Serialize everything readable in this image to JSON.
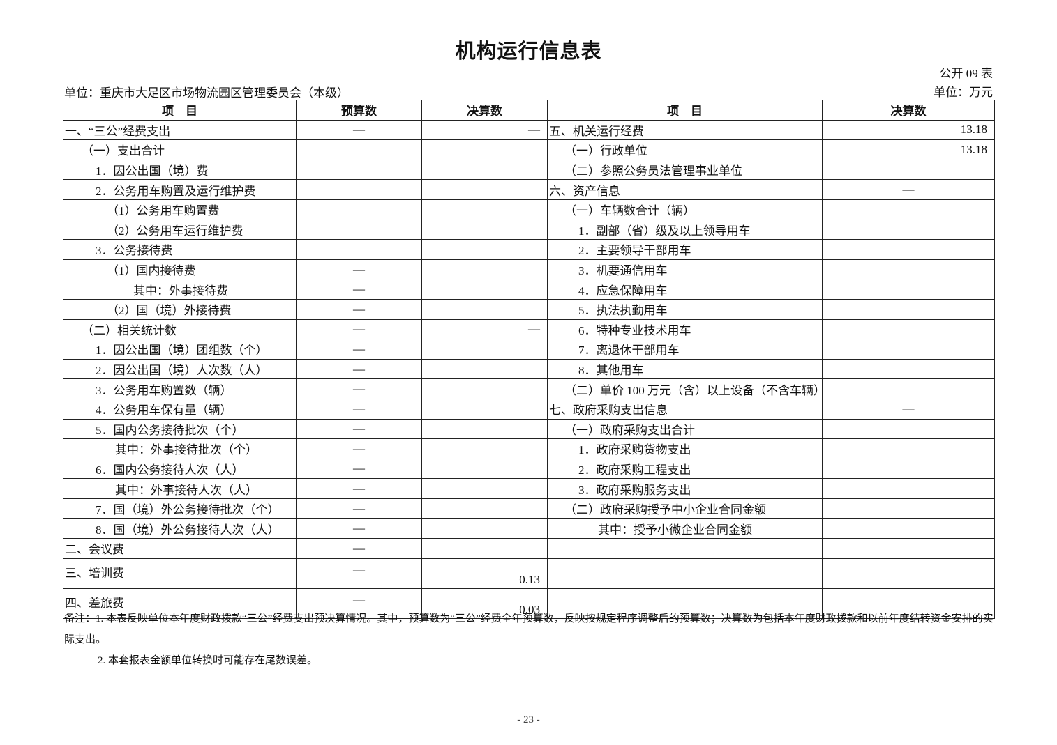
{
  "title": "机构运行信息表",
  "table_no": "公开 09 表",
  "unit_org": "单位：重庆市大足区市场物流园区管理委员会（本级）",
  "unit_money": "单位：万元",
  "headers": {
    "left_item": "项　目",
    "left_budget": "预算数",
    "left_final": "决算数",
    "right_item": "项　目",
    "right_final": "决算数"
  },
  "rows": [
    {
      "l": "一、“三公”经费支出",
      "ll": 0,
      "b": "—",
      "f": "—",
      "r": "五、机关运行经费",
      "rl": 0,
      "rf": "13.18"
    },
    {
      "l": "（一）支出合计",
      "ll": 1,
      "b": "",
      "f": "",
      "r": "（一）行政单位",
      "rl": 1,
      "rf": "13.18"
    },
    {
      "l": "1．因公出国（境）费",
      "ll": 2,
      "b": "",
      "f": "",
      "r": "（二）参照公务员法管理事业单位",
      "rl": 1,
      "rf": ""
    },
    {
      "l": "2．公务用车购置及运行维护费",
      "ll": 2,
      "b": "",
      "f": "",
      "r": "六、资产信息",
      "rl": 0,
      "rf": "—"
    },
    {
      "l": "（1）公务用车购置费",
      "ll": 3,
      "b": "",
      "f": "",
      "r": "（一）车辆数合计（辆）",
      "rl": 1,
      "rf": ""
    },
    {
      "l": "（2）公务用车运行维护费",
      "ll": 3,
      "b": "",
      "f": "",
      "r": "1．副部（省）级及以上领导用车",
      "rl": 2,
      "rf": ""
    },
    {
      "l": "3．公务接待费",
      "ll": 2,
      "b": "",
      "f": "",
      "r": "2．主要领导干部用车",
      "rl": 2,
      "rf": ""
    },
    {
      "l": "（1）国内接待费",
      "ll": 3,
      "b": "—",
      "f": "",
      "r": "3．机要通信用车",
      "rl": 2,
      "rf": ""
    },
    {
      "l": "其中：外事接待费",
      "ll": 5,
      "b": "—",
      "f": "",
      "r": "4．应急保障用车",
      "rl": 2,
      "rf": ""
    },
    {
      "l": "（2）国（境）外接待费",
      "ll": 3,
      "b": "—",
      "f": "",
      "r": "5．执法执勤用车",
      "rl": 2,
      "rf": ""
    },
    {
      "l": "（二）相关统计数",
      "ll": 1,
      "b": "—",
      "f": "—",
      "r": "6．特种专业技术用车",
      "rl": 2,
      "rf": ""
    },
    {
      "l": "1．因公出国（境）团组数（个）",
      "ll": 2,
      "b": "—",
      "f": "",
      "r": "7．离退休干部用车",
      "rl": 2,
      "rf": ""
    },
    {
      "l": "2．因公出国（境）人次数（人）",
      "ll": 2,
      "b": "—",
      "f": "",
      "r": "8．其他用车",
      "rl": 2,
      "rf": ""
    },
    {
      "l": "3．公务用车购置数（辆）",
      "ll": 2,
      "b": "—",
      "f": "",
      "r": "（二）单价 100 万元（含）以上设备（不含车辆）",
      "rl": 1,
      "rf": ""
    },
    {
      "l": "4．公务用车保有量（辆）",
      "ll": 2,
      "b": "—",
      "f": "",
      "r": "七、政府采购支出信息",
      "rl": 0,
      "rf": "—"
    },
    {
      "l": "5．国内公务接待批次（个）",
      "ll": 2,
      "b": "—",
      "f": "",
      "r": "（一）政府采购支出合计",
      "rl": 1,
      "rf": ""
    },
    {
      "l": "其中：外事接待批次（个）",
      "ll": 4,
      "b": "—",
      "f": "",
      "r": "1．政府采购货物支出",
      "rl": 2,
      "rf": ""
    },
    {
      "l": "6．国内公务接待人次（人）",
      "ll": 2,
      "b": "—",
      "f": "",
      "r": "2．政府采购工程支出",
      "rl": 2,
      "rf": ""
    },
    {
      "l": "其中：外事接待人次（人）",
      "ll": 4,
      "b": "—",
      "f": "",
      "r": "3．政府采购服务支出",
      "rl": 2,
      "rf": ""
    },
    {
      "l": "7．国（境）外公务接待批次（个）",
      "ll": 2,
      "b": "—",
      "f": "",
      "r": "（二）政府采购授予中小企业合同金额",
      "rl": 1,
      "rf": ""
    },
    {
      "l": "8．国（境）外公务接待人次（人）",
      "ll": 2,
      "b": "—",
      "f": "",
      "r": "其中：授予小微企业合同金额",
      "rl": 3,
      "rf": ""
    },
    {
      "l": "二、会议费",
      "ll": 0,
      "b": "—",
      "f": "",
      "r": "",
      "rl": 0,
      "rf": ""
    },
    {
      "l": "三、培训费",
      "ll": 0,
      "b": "—",
      "f": "0.13",
      "r": "",
      "rl": 0,
      "rf": "",
      "tall": true
    },
    {
      "l": "四、差旅费",
      "ll": 0,
      "b": "—",
      "f": "0.03",
      "r": "",
      "rl": 0,
      "rf": "",
      "tall": true
    }
  ],
  "notes": [
    "备注：1. 本表反映单位本年度财政拨款“三公”经费支出预决算情况。其中，预算数为“三公”经费全年预算数，反映按规定程序调整后的预算数；决算数为包括本年度财政拨款和以前年度结转资金安排的实际支出。",
    "2. 本套报表金额单位转换时可能存在尾数误差。"
  ],
  "page_number": "- 23 -"
}
